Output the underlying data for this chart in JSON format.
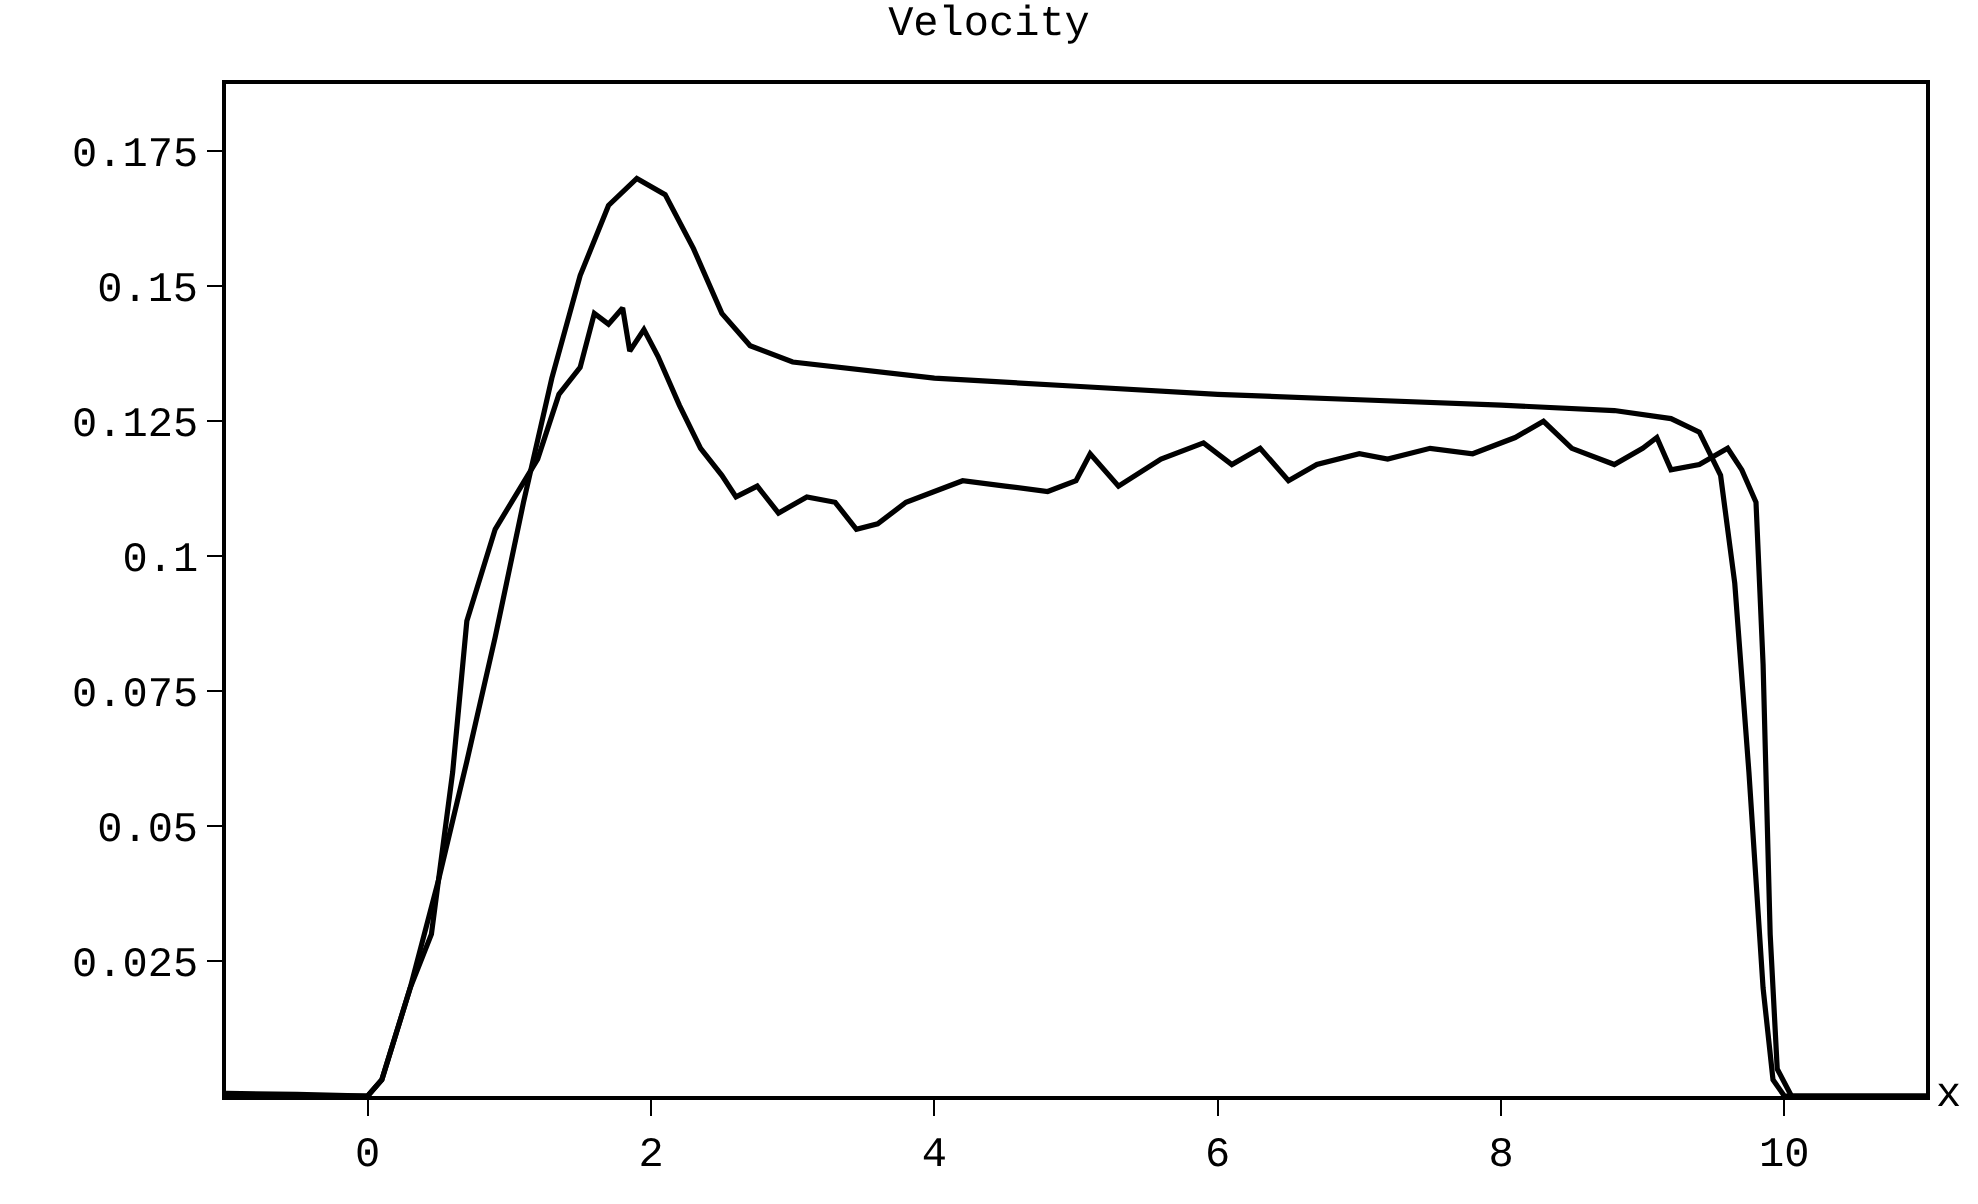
{
  "chart_data": {
    "type": "line",
    "title": "Velocity",
    "xlabel": "x",
    "xlim": [
      -1,
      11
    ],
    "ylim": [
      0,
      0.1875
    ],
    "xticks": [
      0,
      2,
      4,
      6,
      8,
      10
    ],
    "yticks": [
      0.025,
      0.05,
      0.075,
      0.1,
      0.125,
      0.15,
      0.175
    ],
    "marker": "none",
    "line_style": "solid",
    "series": [
      {
        "color": "#000000",
        "x": [
          -1,
          0,
          0.1,
          0.3,
          0.5,
          0.7,
          0.9,
          1.1,
          1.3,
          1.5,
          1.7,
          1.9,
          2.1,
          2.3,
          2.5,
          2.7,
          3,
          4,
          5,
          6,
          7,
          8,
          8.8,
          9.2,
          9.4,
          9.55,
          9.65,
          9.75,
          9.85,
          9.92,
          10,
          11
        ],
        "values": [
          0,
          0,
          0.003,
          0.02,
          0.04,
          0.062,
          0.085,
          0.11,
          0.133,
          0.152,
          0.165,
          0.17,
          0.167,
          0.157,
          0.145,
          0.139,
          0.136,
          0.133,
          0.1315,
          0.13,
          0.129,
          0.128,
          0.127,
          0.1255,
          0.123,
          0.115,
          0.095,
          0.06,
          0.02,
          0.003,
          0,
          0
        ]
      },
      {
        "color": "#000000",
        "x": [
          -1,
          -0.5,
          0,
          0.1,
          0.3,
          0.45,
          0.6,
          0.7,
          0.9,
          1.2,
          1.35,
          1.5,
          1.6,
          1.7,
          1.8,
          1.85,
          1.95,
          2.05,
          2.2,
          2.35,
          2.5,
          2.6,
          2.75,
          2.9,
          3.1,
          3.3,
          3.45,
          3.6,
          3.8,
          4.0,
          4.2,
          4.5,
          4.8,
          5.0,
          5.1,
          5.3,
          5.6,
          5.9,
          6.1,
          6.3,
          6.5,
          6.7,
          7.0,
          7.2,
          7.5,
          7.8,
          8.1,
          8.3,
          8.5,
          8.8,
          9.0,
          9.1,
          9.2,
          9.4,
          9.6,
          9.7,
          9.8,
          9.85,
          9.9,
          9.95,
          10.05,
          11
        ],
        "values": [
          0.0005,
          0.0003,
          0,
          0.003,
          0.02,
          0.03,
          0.06,
          0.088,
          0.105,
          0.118,
          0.13,
          0.135,
          0.145,
          0.143,
          0.146,
          0.138,
          0.142,
          0.137,
          0.128,
          0.12,
          0.115,
          0.111,
          0.113,
          0.108,
          0.111,
          0.11,
          0.105,
          0.106,
          0.11,
          0.112,
          0.114,
          0.113,
          0.112,
          0.114,
          0.119,
          0.113,
          0.118,
          0.121,
          0.117,
          0.12,
          0.114,
          0.117,
          0.119,
          0.118,
          0.12,
          0.119,
          0.122,
          0.125,
          0.12,
          0.117,
          0.12,
          0.122,
          0.116,
          0.117,
          0.12,
          0.116,
          0.11,
          0.08,
          0.03,
          0.005,
          0,
          0
        ]
      }
    ]
  }
}
